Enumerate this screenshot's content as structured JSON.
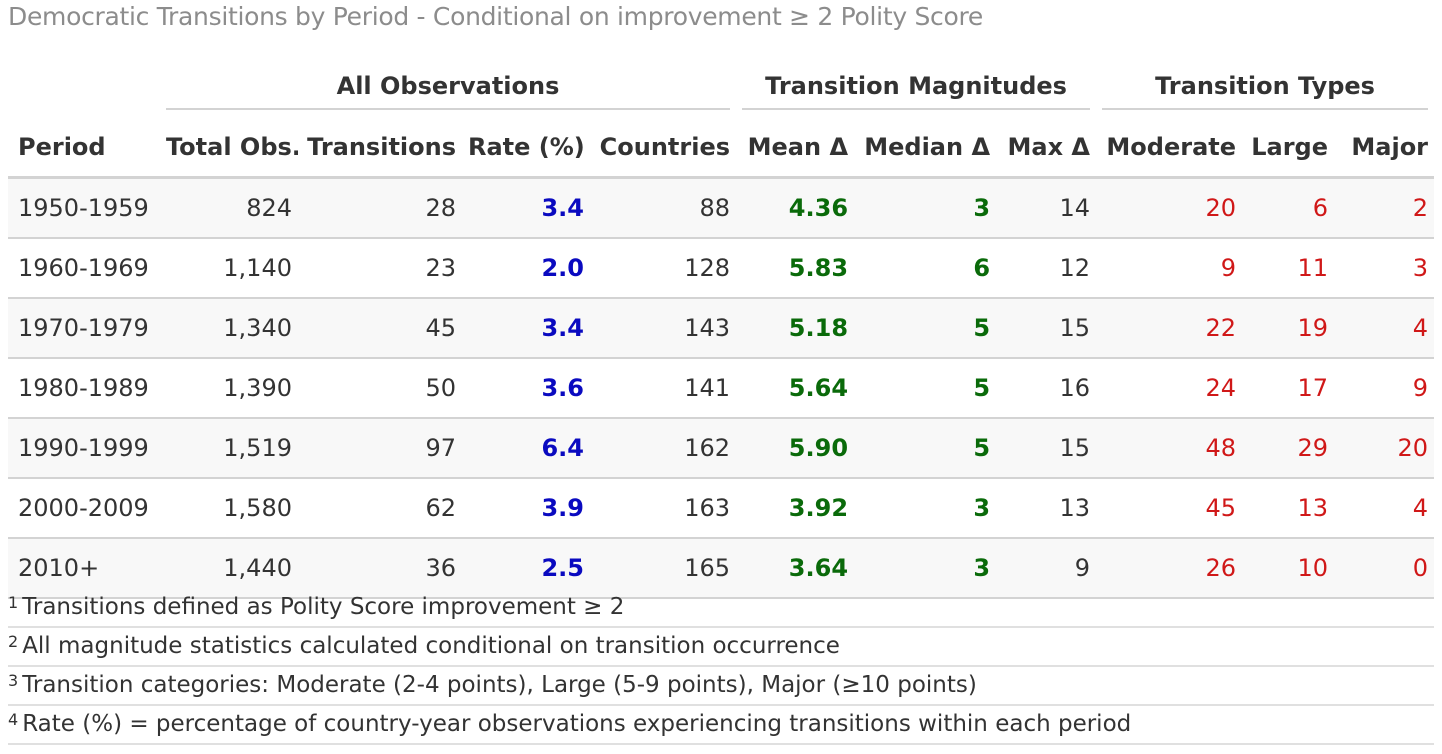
{
  "title": "Democratic Transitions by Period - Conditional on improvement ≥ 2 Polity Score",
  "spanners": {
    "all_observations": "All Observations",
    "transition_magnitudes": "Transition Magnitudes",
    "transition_types": "Transition Types"
  },
  "columns": {
    "period": "Period",
    "total_obs": "Total Obs.",
    "transitions": "Transitions",
    "rate": "Rate (%)",
    "countries": "Countries",
    "mean": "Mean Δ",
    "median": "Median Δ",
    "max": "Max Δ",
    "moderate": "Moderate",
    "large": "Large",
    "major": "Major"
  },
  "rows": [
    {
      "period": "1950-1959",
      "total_obs": "824",
      "transitions": "28",
      "rate": "3.4",
      "countries": "88",
      "mean": "4.36",
      "median": "3",
      "max": "14",
      "moderate": "20",
      "large": "6",
      "major": "2"
    },
    {
      "period": "1960-1969",
      "total_obs": "1,140",
      "transitions": "23",
      "rate": "2.0",
      "countries": "128",
      "mean": "5.83",
      "median": "6",
      "max": "12",
      "moderate": "9",
      "large": "11",
      "major": "3"
    },
    {
      "period": "1970-1979",
      "total_obs": "1,340",
      "transitions": "45",
      "rate": "3.4",
      "countries": "143",
      "mean": "5.18",
      "median": "5",
      "max": "15",
      "moderate": "22",
      "large": "19",
      "major": "4"
    },
    {
      "period": "1980-1989",
      "total_obs": "1,390",
      "transitions": "50",
      "rate": "3.6",
      "countries": "141",
      "mean": "5.64",
      "median": "5",
      "max": "16",
      "moderate": "24",
      "large": "17",
      "major": "9"
    },
    {
      "period": "1990-1999",
      "total_obs": "1,519",
      "transitions": "97",
      "rate": "6.4",
      "countries": "162",
      "mean": "5.90",
      "median": "5",
      "max": "15",
      "moderate": "48",
      "large": "29",
      "major": "20"
    },
    {
      "period": "2000-2009",
      "total_obs": "1,580",
      "transitions": "62",
      "rate": "3.9",
      "countries": "163",
      "mean": "3.92",
      "median": "3",
      "max": "13",
      "moderate": "45",
      "large": "13",
      "major": "4"
    },
    {
      "period": "2010+",
      "total_obs": "1,440",
      "transitions": "36",
      "rate": "2.5",
      "countries": "165",
      "mean": "3.64",
      "median": "3",
      "max": "9",
      "moderate": "26",
      "large": "10",
      "major": "0"
    }
  ],
  "footnotes": [
    {
      "mark": "1",
      "text": "Transitions defined as Polity Score improvement ≥ 2"
    },
    {
      "mark": "2",
      "text": "All magnitude statistics calculated conditional on transition occurrence"
    },
    {
      "mark": "3",
      "text": "Transition categories: Moderate (2-4 points), Large (5-9 points), Major (≥10 points)"
    },
    {
      "mark": "4",
      "text": "Rate (%) = percentage of country-year observations experiencing transitions within each period"
    }
  ],
  "colors": {
    "rate": "#0a0ac0",
    "magnitude": "#0a6a0a",
    "types": "#d01818",
    "title": "#8c8c8c"
  }
}
